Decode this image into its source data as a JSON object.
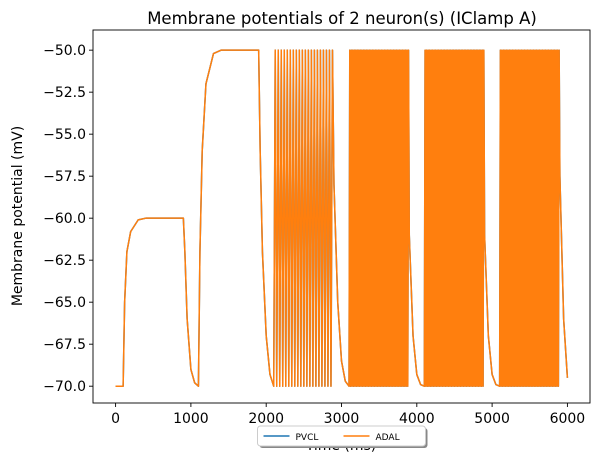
{
  "chart_data": {
    "type": "line",
    "title": "Membrane potentials of 2 neuron(s) (IClamp A)",
    "xlabel": "Time (ms)",
    "ylabel": "Membrane potential (mV)",
    "x": [
      0,
      100,
      120,
      150,
      200,
      300,
      400,
      900,
      920,
      950,
      1000,
      1050,
      1100,
      1120,
      1150,
      1200,
      1300,
      1400,
      1900,
      1920,
      1950,
      2000,
      2050,
      2100,
      2120,
      2140,
      2160,
      2180,
      2200,
      2220,
      2240,
      2260,
      2280,
      2300,
      2320,
      2340,
      2360,
      2380,
      2400,
      2420,
      2440,
      2460,
      2480,
      2500,
      2520,
      2540,
      2560,
      2580,
      2600,
      2620,
      2640,
      2660,
      2680,
      2700,
      2720,
      2740,
      2760,
      2780,
      2800,
      2820,
      2840,
      2860,
      2880,
      2900,
      2950,
      3000,
      3050,
      3100,
      3110,
      3120,
      3130,
      3140,
      3150,
      3160,
      3170,
      3180,
      3190,
      3200,
      3210,
      3220,
      3230,
      3240,
      3250,
      3260,
      3270,
      3280,
      3290,
      3300,
      3310,
      3320,
      3330,
      3340,
      3350,
      3360,
      3370,
      3380,
      3390,
      3400,
      3410,
      3420,
      3430,
      3440,
      3450,
      3460,
      3470,
      3480,
      3490,
      3500,
      3510,
      3520,
      3530,
      3540,
      3550,
      3560,
      3570,
      3580,
      3590,
      3600,
      3610,
      3620,
      3630,
      3640,
      3650,
      3660,
      3670,
      3680,
      3690,
      3700,
      3710,
      3720,
      3730,
      3740,
      3750,
      3760,
      3770,
      3780,
      3790,
      3800,
      3810,
      3820,
      3830,
      3840,
      3850,
      3860,
      3870,
      3880,
      3890,
      3900,
      3950,
      4000,
      4050,
      4100,
      4110,
      4120,
      4130,
      4140,
      4150,
      4160,
      4170,
      4180,
      4190,
      4200,
      4210,
      4220,
      4230,
      4240,
      4250,
      4260,
      4270,
      4280,
      4290,
      4300,
      4310,
      4320,
      4330,
      4340,
      4350,
      4360,
      4370,
      4380,
      4390,
      4400,
      4410,
      4420,
      4430,
      4440,
      4450,
      4460,
      4470,
      4480,
      4490,
      4500,
      4510,
      4520,
      4530,
      4540,
      4550,
      4560,
      4570,
      4580,
      4590,
      4600,
      4610,
      4620,
      4630,
      4640,
      4650,
      4660,
      4670,
      4680,
      4690,
      4700,
      4710,
      4720,
      4730,
      4740,
      4750,
      4760,
      4770,
      4780,
      4790,
      4800,
      4810,
      4820,
      4830,
      4840,
      4850,
      4860,
      4870,
      4880,
      4890,
      4900,
      4950,
      5000,
      5050,
      5100,
      5110,
      5120,
      5130,
      5140,
      5150,
      5160,
      5170,
      5180,
      5190,
      5200,
      5210,
      5220,
      5230,
      5240,
      5250,
      5260,
      5270,
      5280,
      5290,
      5300,
      5310,
      5320,
      5330,
      5340,
      5350,
      5360,
      5370,
      5380,
      5390,
      5400,
      5410,
      5420,
      5430,
      5440,
      5450,
      5460,
      5470,
      5480,
      5490,
      5500,
      5510,
      5520,
      5530,
      5540,
      5550,
      5560,
      5570,
      5580,
      5590,
      5600,
      5610,
      5620,
      5630,
      5640,
      5650,
      5660,
      5670,
      5680,
      5690,
      5700,
      5710,
      5720,
      5730,
      5740,
      5750,
      5760,
      5770,
      5780,
      5790,
      5800,
      5810,
      5820,
      5830,
      5840,
      5850,
      5860,
      5870,
      5880,
      5890,
      5900,
      5950,
      6000
    ],
    "series": [
      {
        "name": "PVCL",
        "color": "#1f77b4",
        "values": [
          -70,
          -70,
          -65,
          -62,
          -60.8,
          -60.1,
          -60,
          -60,
          -62,
          -66,
          -69,
          -69.8,
          -70,
          -62,
          -56,
          -52,
          -50.2,
          -50,
          -50,
          -56,
          -62,
          -67,
          -69.3,
          -70,
          -50,
          -70,
          -50,
          -70,
          -50,
          -70,
          -50,
          -70,
          -50,
          -70,
          -50,
          -70,
          -50,
          -70,
          -50,
          -70,
          -50,
          -70,
          -50,
          -70,
          -50,
          -70,
          -50,
          -70,
          -50,
          -70,
          -50,
          -70,
          -50,
          -70,
          -50,
          -70,
          -50,
          -70,
          -50,
          -70,
          -50,
          -70,
          -50,
          -58,
          -65,
          -68.5,
          -69.7,
          -70,
          -50,
          -70,
          -50,
          -70,
          -50,
          -70,
          -50,
          -70,
          -50,
          -70,
          -50,
          -70,
          -50,
          -70,
          -50,
          -70,
          -50,
          -70,
          -50,
          -70,
          -50,
          -70,
          -50,
          -70,
          -50,
          -70,
          -50,
          -70,
          -50,
          -70,
          -50,
          -70,
          -50,
          -70,
          -50,
          -70,
          -50,
          -70,
          -50,
          -70,
          -50,
          -70,
          -50,
          -70,
          -50,
          -70,
          -50,
          -70,
          -50,
          -70,
          -50,
          -70,
          -50,
          -70,
          -50,
          -70,
          -50,
          -70,
          -50,
          -70,
          -50,
          -70,
          -50,
          -70,
          -50,
          -70,
          -50,
          -70,
          -50,
          -70,
          -50,
          -70,
          -50,
          -70,
          -50,
          -70,
          -50,
          -70,
          -50,
          -61,
          -67,
          -69.3,
          -69.9,
          -70,
          -50,
          -70,
          -50,
          -70,
          -50,
          -70,
          -50,
          -70,
          -50,
          -70,
          -50,
          -70,
          -50,
          -70,
          -50,
          -70,
          -50,
          -70,
          -50,
          -70,
          -50,
          -70,
          -50,
          -70,
          -50,
          -70,
          -50,
          -70,
          -50,
          -70,
          -50,
          -70,
          -50,
          -70,
          -50,
          -70,
          -50,
          -70,
          -50,
          -70,
          -50,
          -70,
          -50,
          -70,
          -50,
          -70,
          -50,
          -70,
          -50,
          -70,
          -50,
          -70,
          -50,
          -70,
          -50,
          -70,
          -50,
          -70,
          -50,
          -70,
          -50,
          -70,
          -50,
          -70,
          -50,
          -70,
          -50,
          -70,
          -50,
          -70,
          -50,
          -70,
          -50,
          -70,
          -50,
          -70,
          -50,
          -70,
          -50,
          -61,
          -67,
          -69.3,
          -69.9,
          -70,
          -50,
          -70,
          -50,
          -70,
          -50,
          -70,
          -50,
          -70,
          -50,
          -70,
          -50,
          -70,
          -50,
          -70,
          -50,
          -70,
          -50,
          -70,
          -50,
          -70,
          -50,
          -70,
          -50,
          -70,
          -50,
          -70,
          -50,
          -70,
          -50,
          -70,
          -50,
          -70,
          -50,
          -70,
          -50,
          -70,
          -50,
          -70,
          -50,
          -70,
          -50,
          -70,
          -50,
          -70,
          -50,
          -70,
          -50,
          -70,
          -50,
          -70,
          -50,
          -70,
          -50,
          -70,
          -50,
          -70,
          -50,
          -70,
          -50,
          -70,
          -50,
          -70,
          -50,
          -70,
          -50,
          -70,
          -50,
          -70,
          -50,
          -70,
          -50,
          -70,
          -50,
          -70,
          -50,
          -70,
          -50,
          -70,
          -50,
          -57.5,
          -66,
          -69.5
        ]
      },
      {
        "name": "ADAL",
        "color": "#ff7f0e",
        "values": [
          -70,
          -70,
          -65,
          -62,
          -60.8,
          -60.1,
          -60,
          -60,
          -62,
          -66,
          -69,
          -69.8,
          -70,
          -62,
          -56,
          -52,
          -50.2,
          -50,
          -50,
          -56,
          -62,
          -67,
          -69.3,
          -70,
          -50,
          -70,
          -50,
          -70,
          -50,
          -70,
          -50,
          -70,
          -50,
          -70,
          -50,
          -70,
          -50,
          -70,
          -50,
          -70,
          -50,
          -70,
          -50,
          -70,
          -50,
          -70,
          -50,
          -70,
          -50,
          -70,
          -50,
          -70,
          -50,
          -70,
          -50,
          -70,
          -50,
          -70,
          -50,
          -70,
          -50,
          -70,
          -50,
          -58,
          -65,
          -68.5,
          -69.7,
          -70,
          -50,
          -70,
          -50,
          -70,
          -50,
          -70,
          -50,
          -70,
          -50,
          -70,
          -50,
          -70,
          -50,
          -70,
          -50,
          -70,
          -50,
          -70,
          -50,
          -70,
          -50,
          -70,
          -50,
          -70,
          -50,
          -70,
          -50,
          -70,
          -50,
          -70,
          -50,
          -70,
          -50,
          -70,
          -50,
          -70,
          -50,
          -70,
          -50,
          -70,
          -50,
          -70,
          -50,
          -70,
          -50,
          -70,
          -50,
          -70,
          -50,
          -70,
          -50,
          -70,
          -50,
          -70,
          -50,
          -70,
          -50,
          -70,
          -50,
          -70,
          -50,
          -70,
          -50,
          -70,
          -50,
          -70,
          -50,
          -70,
          -50,
          -70,
          -50,
          -70,
          -50,
          -70,
          -50,
          -70,
          -50,
          -70,
          -50,
          -61,
          -67,
          -69.3,
          -69.9,
          -70,
          -50,
          -70,
          -50,
          -70,
          -50,
          -70,
          -50,
          -70,
          -50,
          -70,
          -50,
          -70,
          -50,
          -70,
          -50,
          -70,
          -50,
          -70,
          -50,
          -70,
          -50,
          -70,
          -50,
          -70,
          -50,
          -70,
          -50,
          -70,
          -50,
          -70,
          -50,
          -70,
          -50,
          -70,
          -50,
          -70,
          -50,
          -70,
          -50,
          -70,
          -50,
          -70,
          -50,
          -70,
          -50,
          -70,
          -50,
          -70,
          -50,
          -70,
          -50,
          -70,
          -50,
          -70,
          -50,
          -70,
          -50,
          -70,
          -50,
          -70,
          -50,
          -70,
          -50,
          -70,
          -50,
          -70,
          -50,
          -70,
          -50,
          -70,
          -50,
          -70,
          -50,
          -70,
          -50,
          -70,
          -50,
          -70,
          -50,
          -61,
          -67,
          -69.3,
          -69.9,
          -70,
          -50,
          -70,
          -50,
          -70,
          -50,
          -70,
          -50,
          -70,
          -50,
          -70,
          -50,
          -70,
          -50,
          -70,
          -50,
          -70,
          -50,
          -70,
          -50,
          -70,
          -50,
          -70,
          -50,
          -70,
          -50,
          -70,
          -50,
          -70,
          -50,
          -70,
          -50,
          -70,
          -50,
          -70,
          -50,
          -70,
          -50,
          -70,
          -50,
          -70,
          -50,
          -70,
          -50,
          -70,
          -50,
          -70,
          -50,
          -70,
          -50,
          -70,
          -50,
          -70,
          -50,
          -70,
          -50,
          -70,
          -50,
          -70,
          -50,
          -70,
          -50,
          -70,
          -50,
          -70,
          -50,
          -70,
          -50,
          -70,
          -50,
          -70,
          -50,
          -70,
          -50,
          -70,
          -50,
          -70,
          -50,
          -70,
          -50,
          -57.5,
          -66,
          -69.5
        ]
      }
    ],
    "xlim": [
      -300,
      6300
    ],
    "ylim": [
      -71,
      -48.8
    ],
    "xticks": [
      0,
      1000,
      2000,
      3000,
      4000,
      5000,
      6000
    ],
    "yticks": [
      {
        "value": -50,
        "label": "−50.0"
      },
      {
        "value": -52.5,
        "label": "−52.5"
      },
      {
        "value": -55,
        "label": "−55.0"
      },
      {
        "value": -57.5,
        "label": "−57.5"
      },
      {
        "value": -60,
        "label": "−60.0"
      },
      {
        "value": -62.5,
        "label": "−62.5"
      },
      {
        "value": -65,
        "label": "−65.0"
      },
      {
        "value": -67.5,
        "label": "−67.5"
      },
      {
        "value": -70,
        "label": "−70.0"
      }
    ],
    "grid": false,
    "legend": "lower center"
  }
}
